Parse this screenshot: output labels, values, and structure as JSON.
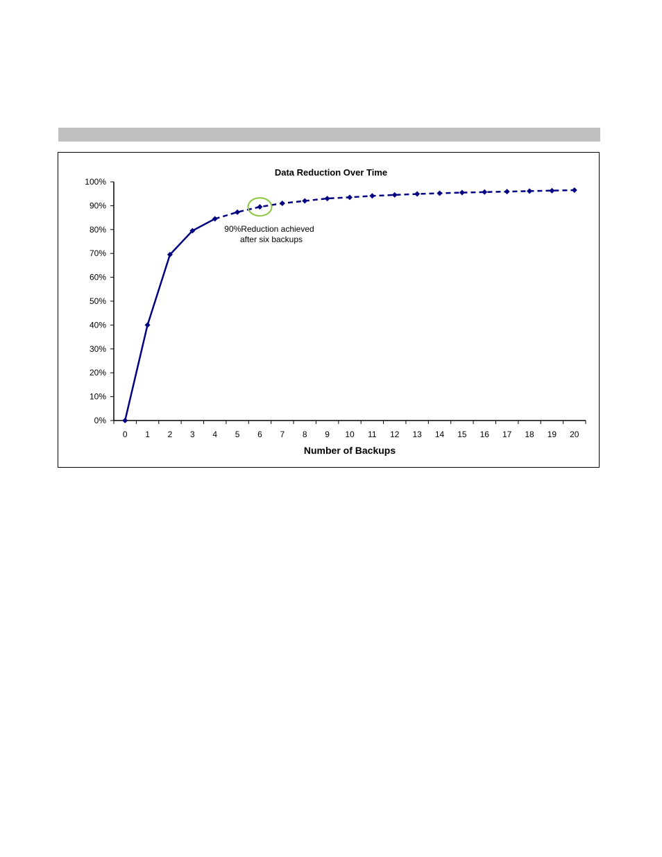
{
  "chart_data": {
    "type": "line",
    "title": "Data Reduction Over Time",
    "xlabel": "Number of Backups",
    "ylabel": "",
    "x": [
      0,
      1,
      2,
      3,
      4,
      5,
      6,
      7,
      8,
      9,
      10,
      11,
      12,
      13,
      14,
      15,
      16,
      17,
      18,
      19,
      20
    ],
    "y_tick_labels": [
      "0%",
      "10%",
      "20%",
      "30%",
      "40%",
      "50%",
      "60%",
      "70%",
      "80%",
      "90%",
      "100%"
    ],
    "ylim": [
      0,
      100
    ],
    "series": [
      {
        "values": [
          0,
          40,
          69.5,
          79.5,
          84.5,
          87.3,
          89.5,
          91,
          92,
          93,
          93.5,
          94.1,
          94.5,
          94.9,
          95.2,
          95.5,
          95.7,
          95.9,
          96.1,
          96.3,
          96.5
        ],
        "solid_through_x": 4,
        "dashed_after_x": 4,
        "color": "#000080"
      }
    ],
    "annotation": {
      "text_line1": "90%Reduction achieved",
      "text_line2": "after six backups",
      "highlight_x": 6,
      "highlight_color": "#8dc63f"
    },
    "grid": false,
    "legend": "none"
  },
  "colors": {
    "section_bar": "#c0c0c0",
    "series": "#000080"
  }
}
